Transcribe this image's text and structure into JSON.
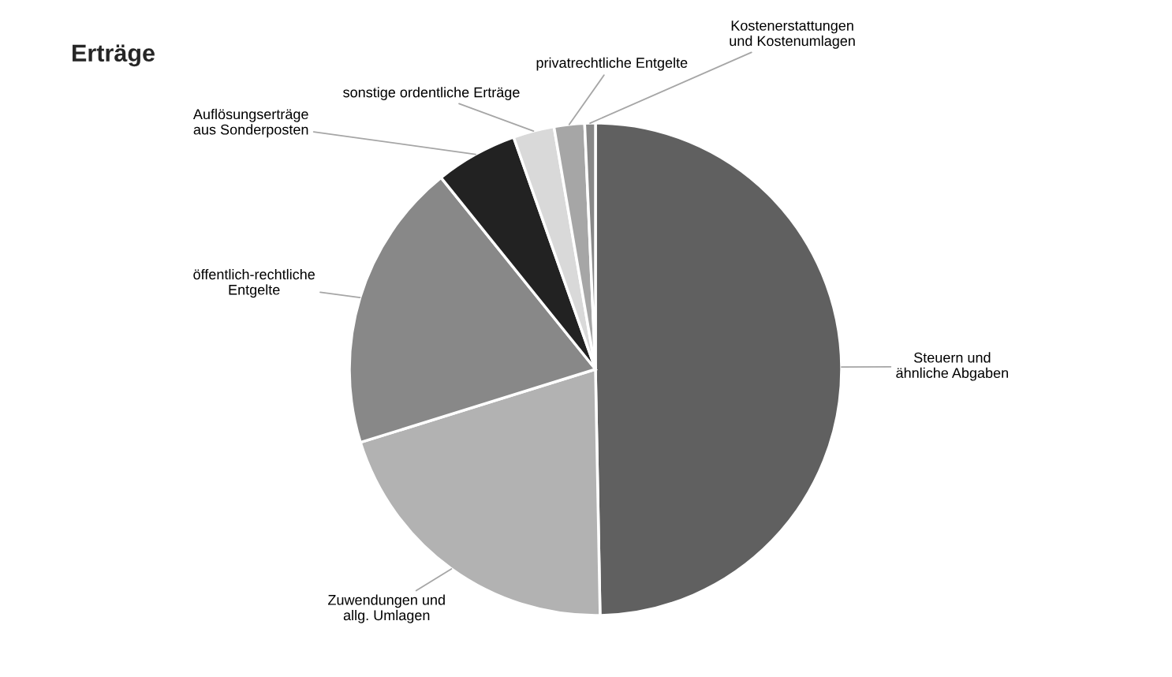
{
  "chart_data": {
    "type": "pie",
    "title": "Erträge",
    "categories": [
      "Steuern und ähnliche Abgaben",
      "Zuwendungen und allg. Umlagen",
      "öffentlich-rechtliche Entgelte",
      "Auflösungserträge aus Sonderposten",
      "sonstige ordentliche Erträge",
      "privatrechtliche Entgelte",
      "Kostenerstattungen und Kostenumlagen"
    ],
    "values": [
      49.7,
      20.5,
      19.0,
      5.4,
      2.7,
      2.0,
      0.7
    ],
    "colors": [
      "#606060",
      "#b2b2b2",
      "#888888",
      "#222222",
      "#d9d9d9",
      "#a6a6a6",
      "#888888"
    ],
    "legend": false
  }
}
